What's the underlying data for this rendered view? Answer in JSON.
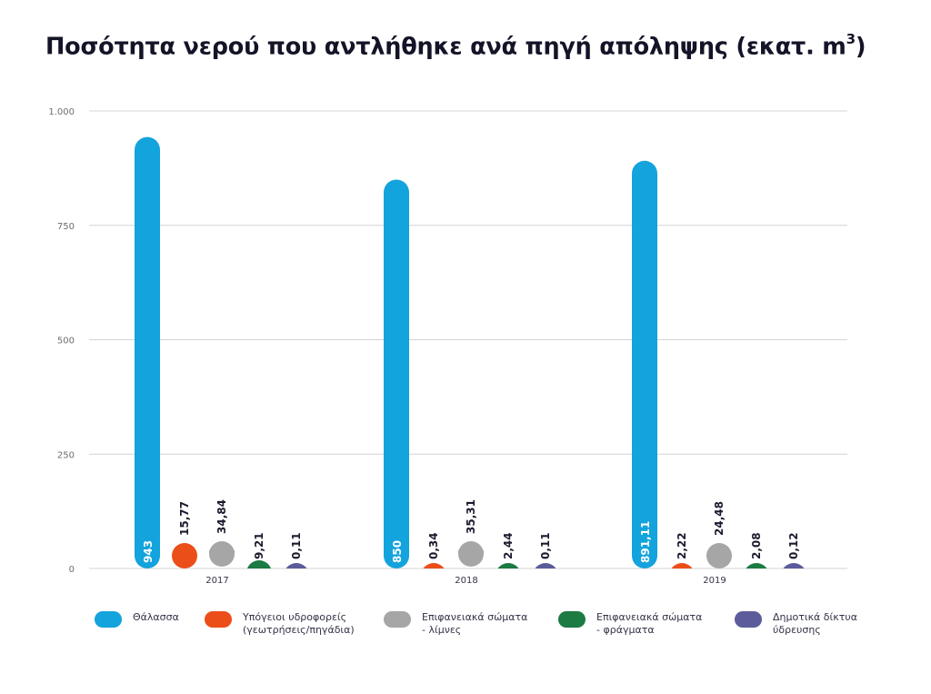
{
  "title": "Ποσότητα νερού που αντλήθηκε ανά πηγή απόληψης (εκατ. m",
  "title_sup": "3",
  "title_tail": ")",
  "colors": {
    "sea": "#13a3dd",
    "groundwater": "#ec4e1a",
    "lakes": "#a6a6a6",
    "dams": "#1c7a43",
    "municipal": "#5c5c9c",
    "grid": "#d4d4d4",
    "axis_text": "#6d6d6d"
  },
  "chart_data": {
    "type": "bar",
    "title": "Ποσότητα νερού που αντλήθηκε ανά πηγή απόληψης (εκατ. m3)",
    "categories": [
      "2017",
      "2018",
      "2019"
    ],
    "ylim": [
      0,
      1000
    ],
    "yticks": [
      0,
      250,
      500,
      750,
      1000
    ],
    "ytick_labels": [
      "0",
      "250",
      "500",
      "750",
      "1.000"
    ],
    "grid": true,
    "legend_position": "bottom",
    "series": [
      {
        "name": "Θάλασσα",
        "color_key": "sea",
        "values": [
          943,
          850,
          891.11
        ],
        "labels": [
          "943",
          "850",
          "891,11"
        ]
      },
      {
        "name": "Υπόγειοι υδροφορείς (γεωτρήσεις/πηγάδια)",
        "color_key": "groundwater",
        "values": [
          15.77,
          0.34,
          2.22
        ],
        "labels": [
          "15,77",
          "0,34",
          "2,22"
        ]
      },
      {
        "name": "Επιφανειακά σώματα - λίμνες",
        "color_key": "lakes",
        "values": [
          34.84,
          35.31,
          24.48
        ],
        "labels": [
          "34,84",
          "35,31",
          "24,48"
        ]
      },
      {
        "name": "Επιφανειακά σώματα - φράγματα",
        "color_key": "dams",
        "values": [
          9.21,
          2.44,
          2.08
        ],
        "labels": [
          "9,21",
          "2,44",
          "2,08"
        ]
      },
      {
        "name": "Δημοτικά δίκτυα ύδρευσης",
        "color_key": "municipal",
        "values": [
          0.11,
          0.11,
          0.12
        ],
        "labels": [
          "0,11",
          "0,11",
          "0,12"
        ]
      }
    ]
  },
  "legend": [
    {
      "label": "Θάλασσα",
      "color_key": "sea"
    },
    {
      "label": "Υπόγειοι υδροφορείς\n(γεωτρήσεις/πηγάδια)",
      "color_key": "groundwater"
    },
    {
      "label": "Επιφανειακά σώματα\n- λίμνες",
      "color_key": "lakes"
    },
    {
      "label": "Επιφανειακά σώματα\n- φράγματα",
      "color_key": "dams"
    },
    {
      "label": "Δημοτικά δίκτυα\nύδρευσης",
      "color_key": "municipal"
    }
  ]
}
